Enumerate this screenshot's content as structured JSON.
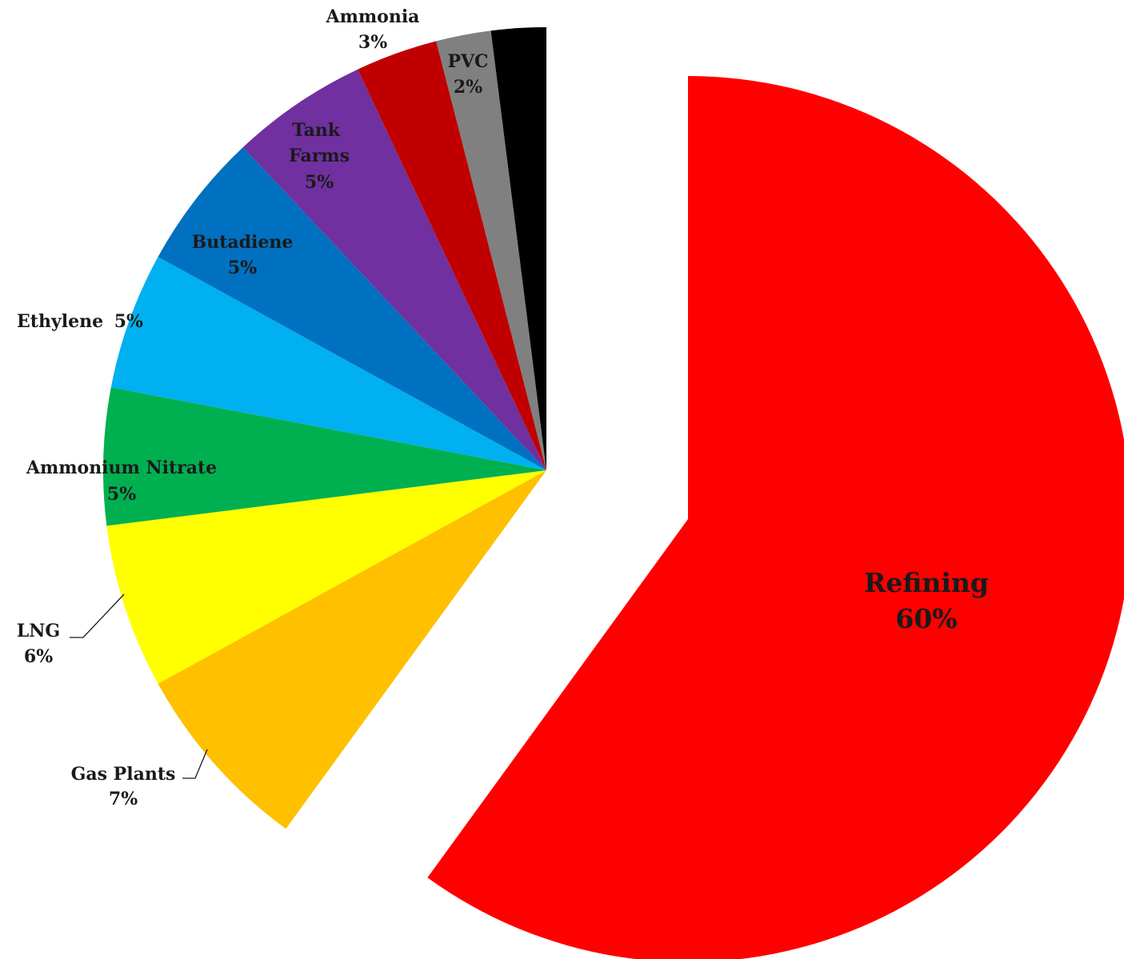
{
  "chart_data": {
    "type": "pie",
    "title": "",
    "slices": [
      {
        "label": "Refining",
        "value": 60,
        "value_label": "60%",
        "color": "#ff0000",
        "exploded": true
      },
      {
        "label": "Gas Plants",
        "value": 7,
        "value_label": "7%",
        "color": "#ffc000"
      },
      {
        "label": "LNG",
        "value": 6,
        "value_label": "6%",
        "color": "#ffff00"
      },
      {
        "label": "Ammonium Nitrate",
        "value": 5,
        "value_label": "5%",
        "color": "#00b050"
      },
      {
        "label": "Ethylene",
        "value": 5,
        "value_label": "5%",
        "color": "#00b0f0"
      },
      {
        "label": "Butadiene",
        "value": 5,
        "value_label": "5%",
        "color": "#0070c0"
      },
      {
        "label": "Tank Farms",
        "value": 5,
        "value_label": "5%",
        "color": "#7030a0"
      },
      {
        "label": "Ammonia",
        "value": 3,
        "value_label": "3%",
        "color": "#c00000"
      },
      {
        "label": "PVC",
        "value": 2,
        "value_label": "2%",
        "color": "#808080"
      },
      {
        "label": "",
        "value": 2,
        "value_label": "",
        "color": "#000000"
      }
    ],
    "legend": "none",
    "data_labels": "category and percentage"
  }
}
